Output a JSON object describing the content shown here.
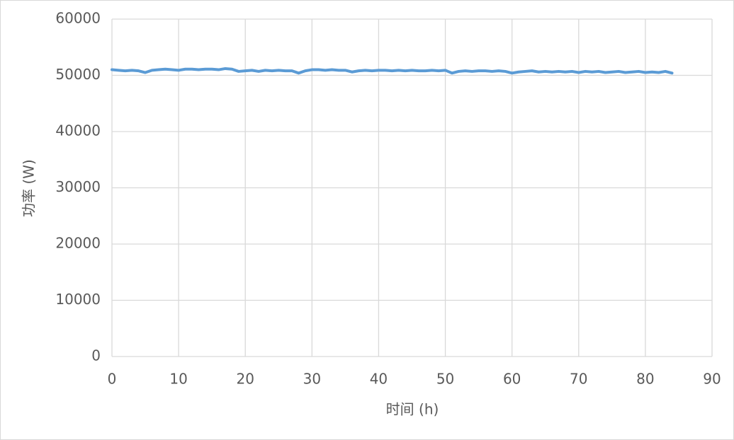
{
  "chart_data": {
    "type": "line",
    "x_label": "时间 (h)",
    "y_label": "功率 (W)",
    "x": [
      0,
      1,
      2,
      3,
      4,
      5,
      6,
      7,
      8,
      9,
      10,
      11,
      12,
      13,
      14,
      15,
      16,
      17,
      18,
      19,
      20,
      21,
      22,
      23,
      24,
      25,
      26,
      27,
      28,
      29,
      30,
      31,
      32,
      33,
      34,
      35,
      36,
      37,
      38,
      39,
      40,
      41,
      42,
      43,
      44,
      45,
      46,
      47,
      48,
      49,
      50,
      51,
      52,
      53,
      54,
      55,
      56,
      57,
      58,
      59,
      60,
      61,
      62,
      63,
      64,
      65,
      66,
      67,
      68,
      69,
      70,
      71,
      72,
      73,
      74,
      75,
      76,
      77,
      78,
      79,
      80,
      81,
      82,
      83,
      84
    ],
    "values": [
      51000,
      50900,
      50800,
      50900,
      50800,
      50500,
      50900,
      51000,
      51100,
      51000,
      50900,
      51100,
      51100,
      51000,
      51100,
      51100,
      51000,
      51200,
      51100,
      50700,
      50800,
      50900,
      50700,
      50900,
      50800,
      50900,
      50800,
      50800,
      50400,
      50800,
      51000,
      51000,
      50900,
      51000,
      50900,
      50900,
      50600,
      50800,
      50900,
      50800,
      50900,
      50900,
      50800,
      50900,
      50800,
      50900,
      50800,
      50800,
      50900,
      50800,
      50900,
      50400,
      50700,
      50800,
      50700,
      50800,
      50800,
      50700,
      50800,
      50700,
      50400,
      50600,
      50700,
      50800,
      50600,
      50700,
      50600,
      50700,
      50600,
      50700,
      50500,
      50700,
      50600,
      50700,
      50500,
      50600,
      50700,
      50500,
      50600,
      50700,
      50500,
      50600,
      50500,
      50700,
      50400
    ],
    "color": "#5b9bd5",
    "xlim": [
      0,
      90
    ],
    "xticks": [
      0,
      10,
      20,
      30,
      40,
      50,
      60,
      70,
      80,
      90
    ],
    "ylim": [
      0,
      60000
    ],
    "yticks": [
      0,
      10000,
      20000,
      30000,
      40000,
      50000,
      60000
    ],
    "grid": true
  }
}
